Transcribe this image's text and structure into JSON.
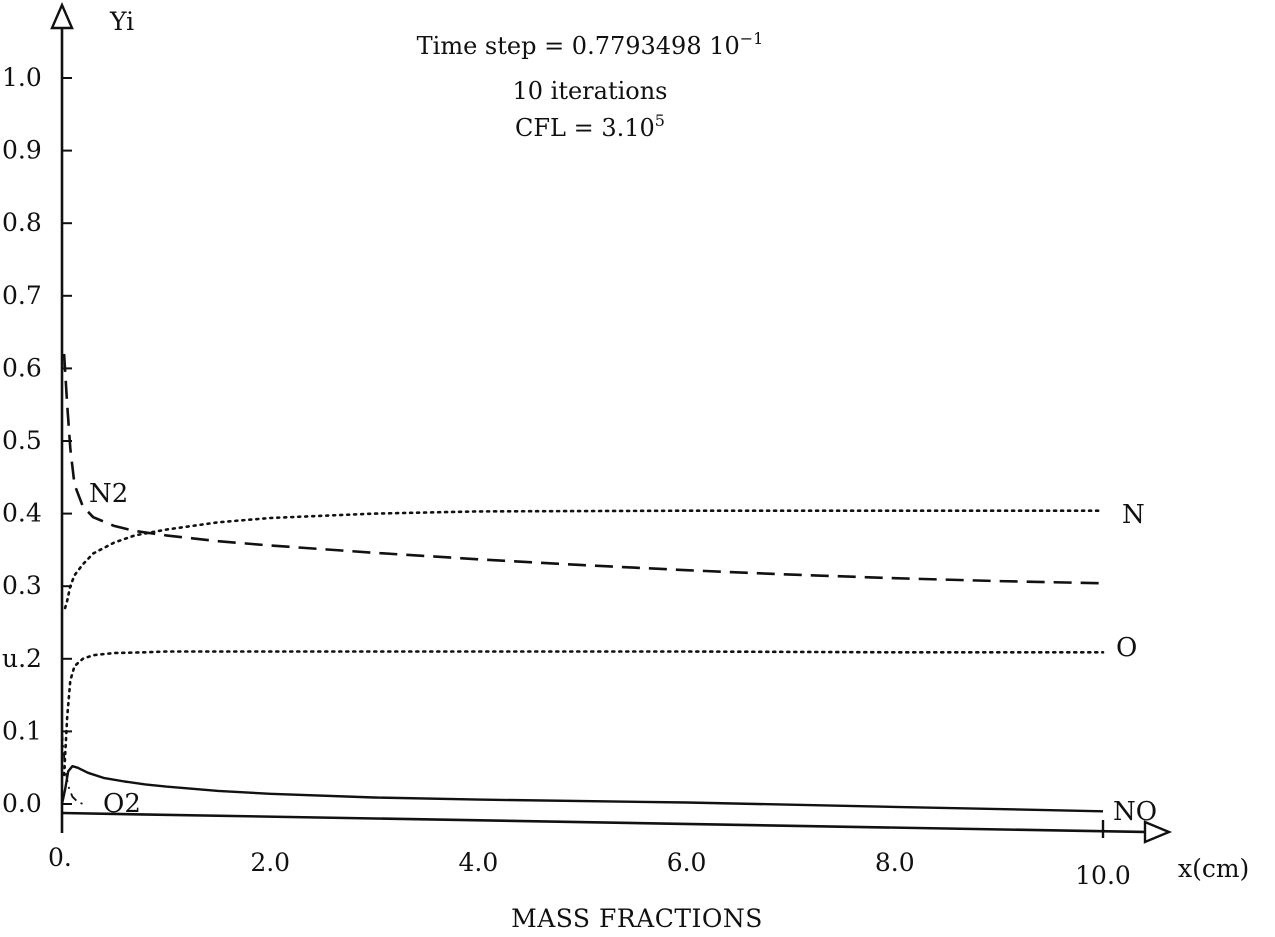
{
  "chart_data": {
    "type": "line",
    "title_lines": [
      "Time step = 0.7793498 10",
      "10 iterations",
      "CFL = 3.10"
    ],
    "title_superscripts": [
      "−1",
      "",
      "5"
    ],
    "xlabel": "MASS FRACTIONS",
    "x_axis_unit_label": "x(cm)",
    "ylabel": "Yi",
    "xlim": [
      0,
      10
    ],
    "ylim": [
      0,
      1.0
    ],
    "x_ticks": [
      0,
      2,
      4,
      6,
      8,
      10
    ],
    "x_tick_labels": [
      "0.",
      "2.0",
      "4.0",
      "6.0",
      "8.0",
      "10.0"
    ],
    "y_ticks": [
      0.0,
      0.1,
      0.2,
      0.3,
      0.4,
      0.5,
      0.6,
      0.7,
      0.8,
      0.9,
      1.0
    ],
    "y_tick_labels": [
      "0.0",
      "0.1",
      "u.2",
      "0.3",
      "0.4",
      "0.5",
      "0.6",
      "0.7",
      "0.8",
      "0.9",
      "1.0"
    ],
    "grid": false,
    "series": [
      {
        "name": "N",
        "line_style": "dotted",
        "x": [
          0.03,
          0.05,
          0.08,
          0.12,
          0.2,
          0.3,
          0.5,
          0.7,
          1.0,
          1.5,
          2.0,
          3.0,
          4.0,
          6.0,
          8.0,
          10.0
        ],
        "y": [
          0.27,
          0.28,
          0.3,
          0.315,
          0.33,
          0.345,
          0.36,
          0.37,
          0.378,
          0.388,
          0.394,
          0.4,
          0.403,
          0.404,
          0.404,
          0.404
        ]
      },
      {
        "name": "N2",
        "line_style": "dashed",
        "x": [
          0.02,
          0.05,
          0.08,
          0.12,
          0.2,
          0.3,
          0.5,
          0.7,
          1.0,
          1.5,
          2.0,
          3.0,
          4.0,
          5.0,
          6.0,
          7.0,
          8.0,
          9.0,
          10.0
        ],
        "y": [
          0.62,
          0.55,
          0.49,
          0.44,
          0.41,
          0.395,
          0.383,
          0.376,
          0.37,
          0.362,
          0.356,
          0.346,
          0.337,
          0.329,
          0.322,
          0.316,
          0.311,
          0.307,
          0.304
        ]
      },
      {
        "name": "O",
        "line_style": "dotted",
        "x": [
          0.02,
          0.05,
          0.08,
          0.12,
          0.2,
          0.3,
          0.5,
          0.8,
          1.0,
          1.5,
          2.0,
          4.0,
          6.0,
          8.0,
          10.0
        ],
        "y": [
          0.04,
          0.12,
          0.17,
          0.19,
          0.2,
          0.205,
          0.208,
          0.209,
          0.21,
          0.21,
          0.21,
          0.21,
          0.21,
          0.209,
          0.209
        ]
      },
      {
        "name": "O2",
        "line_style": "dash-dot",
        "x": [
          0.0,
          0.03,
          0.06,
          0.1,
          0.15,
          0.2
        ],
        "y": [
          0.1,
          0.05,
          0.025,
          0.01,
          0.003,
          0.0
        ]
      },
      {
        "name": "NO",
        "line_style": "solid",
        "x": [
          0.0,
          0.03,
          0.06,
          0.1,
          0.15,
          0.25,
          0.4,
          0.6,
          0.8,
          1.0,
          1.5,
          2.0,
          3.0,
          4.0,
          6.0,
          8.0,
          10.0
        ],
        "y": [
          0.0,
          0.02,
          0.045,
          0.052,
          0.05,
          0.043,
          0.036,
          0.031,
          0.027,
          0.024,
          0.018,
          0.014,
          0.009,
          0.006,
          0.002,
          -0.004,
          -0.01
        ]
      }
    ]
  }
}
